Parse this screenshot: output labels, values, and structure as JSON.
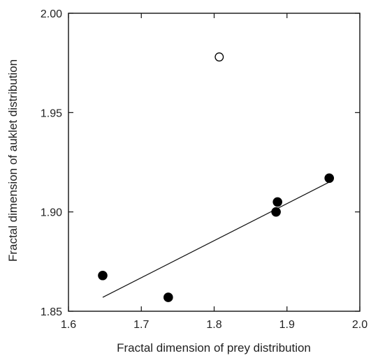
{
  "chart_data": {
    "type": "scatter",
    "title": "",
    "xlabel": "Fractal dimension of prey distribution",
    "ylabel": "Fractal dimension of auklet distribution",
    "xlim": [
      1.6,
      2.0
    ],
    "ylim": [
      1.85,
      2.0
    ],
    "x_ticks": [
      "1.6",
      "1.7",
      "1.8",
      "1.9",
      "2.0"
    ],
    "y_ticks": [
      "1.85",
      "1.90",
      "1.95",
      "2.00"
    ],
    "grid": false,
    "legend": "none",
    "series": [
      {
        "marker": "filled-circle",
        "color": "#000000",
        "points": [
          {
            "x": 1.647,
            "y": 1.868
          },
          {
            "x": 1.737,
            "y": 1.857
          },
          {
            "x": 1.885,
            "y": 1.9
          },
          {
            "x": 1.887,
            "y": 1.905
          },
          {
            "x": 1.958,
            "y": 1.917
          }
        ]
      },
      {
        "marker": "open-circle",
        "color": "#000000",
        "points": [
          {
            "x": 1.807,
            "y": 1.978
          }
        ]
      }
    ],
    "fit_line": {
      "x": [
        1.647,
        1.958
      ],
      "y": [
        1.857,
        1.915
      ]
    }
  }
}
